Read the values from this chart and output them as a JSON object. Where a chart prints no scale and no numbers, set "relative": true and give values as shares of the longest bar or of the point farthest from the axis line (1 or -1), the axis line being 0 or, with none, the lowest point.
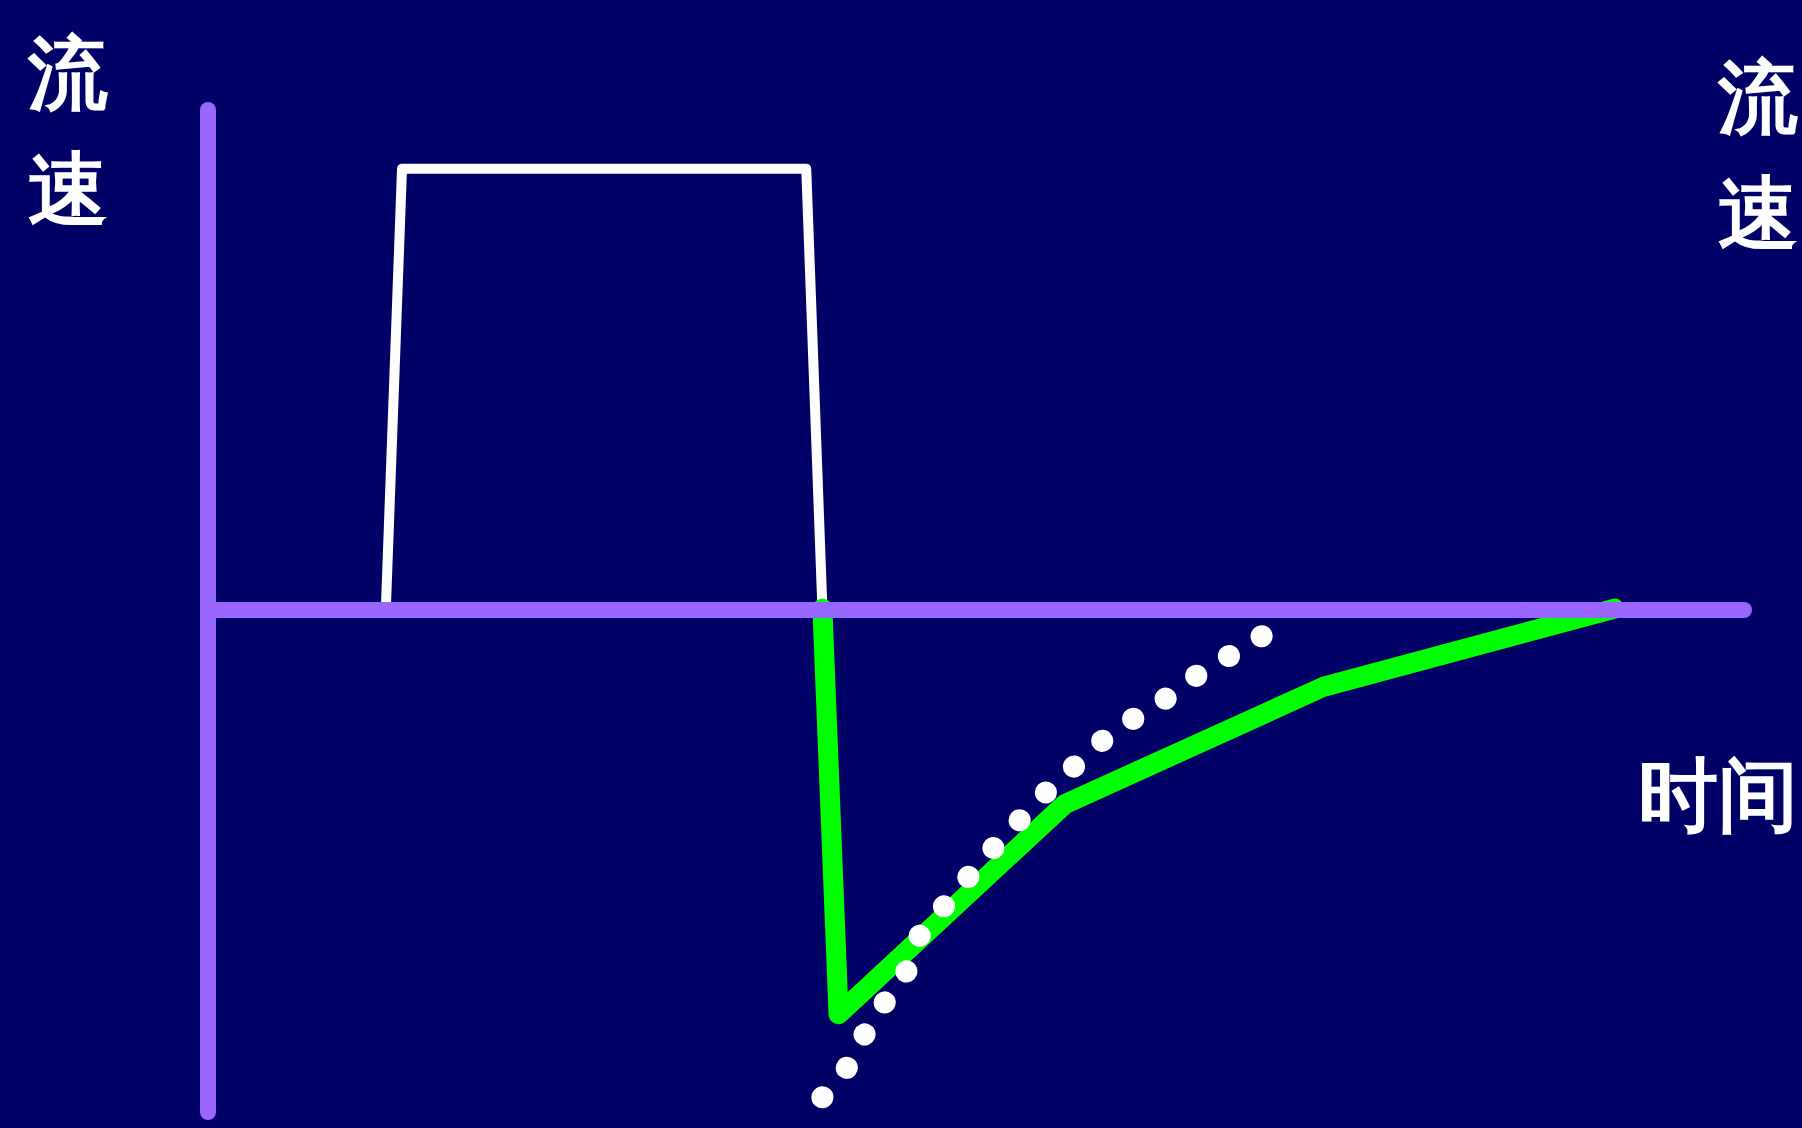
{
  "chart_data": {
    "type": "line",
    "ylabel": "流速",
    "y2label": "流速",
    "xlabel": "时间",
    "relative": true,
    "marker": "none",
    "ref_lines": [
      {
        "axis": "y",
        "value": 0,
        "color": "#9966ff"
      }
    ],
    "categories": [
      null,
      null,
      null,
      null,
      null,
      null,
      null,
      null,
      null,
      null,
      null,
      null,
      null,
      null,
      null,
      null,
      null,
      null,
      null,
      null,
      null,
      null,
      null,
      null,
      null,
      null,
      null,
      null,
      null,
      null,
      null,
      null,
      null,
      null,
      null,
      null,
      null,
      null,
      null,
      null,
      null,
      null,
      null,
      null,
      null,
      null,
      null,
      null,
      null,
      null,
      null,
      null,
      null,
      null,
      null,
      null,
      null,
      null,
      null,
      null,
      null,
      null,
      null,
      null,
      null,
      null,
      null,
      null,
      null,
      null,
      null,
      null,
      null,
      null,
      null,
      null,
      null,
      null,
      null,
      null,
      null,
      null,
      null,
      null,
      null,
      null,
      null,
      null,
      null,
      null,
      null,
      null,
      null,
      null,
      null,
      null
    ],
    "series": [
      {
        "color": "#ffffff",
        "values": [
          null,
          null,
          null,
          null,
          null,
          null,
          null,
          null,
          null,
          null,
          null,
          0,
          0.9,
          null,
          null,
          null,
          null,
          null,
          null,
          null,
          null,
          null,
          null,
          null,
          null,
          null,
          null,
          null,
          null,
          null,
          null,
          null,
          null,
          null,
          null,
          null,
          null,
          0.9,
          0,
          null,
          null,
          null,
          null,
          null,
          null,
          null,
          null,
          null,
          null,
          null,
          null,
          null,
          null,
          null,
          null,
          null,
          null,
          null,
          null,
          null,
          null,
          null,
          null,
          null,
          null,
          null,
          null,
          null,
          null,
          null,
          null,
          null,
          null,
          null,
          null,
          null,
          null,
          null,
          null,
          null,
          null,
          null,
          null,
          null,
          null,
          null,
          null,
          null,
          null,
          null,
          null,
          null,
          null,
          null,
          null,
          null
        ]
      },
      {
        "color": "#00ff00",
        "values": [
          null,
          null,
          null,
          null,
          null,
          null,
          null,
          null,
          null,
          null,
          null,
          null,
          null,
          null,
          null,
          null,
          null,
          null,
          null,
          null,
          null,
          null,
          null,
          null,
          null,
          null,
          null,
          null,
          null,
          null,
          null,
          null,
          null,
          null,
          null,
          null,
          null,
          null,
          0,
          -0.83,
          null,
          null,
          null,
          null,
          null,
          null,
          null,
          null,
          null,
          null,
          null,
          null,
          null,
          -0.4,
          null,
          null,
          null,
          null,
          null,
          null,
          null,
          null,
          null,
          null,
          null,
          null,
          null,
          null,
          null,
          -0.16,
          null,
          null,
          null,
          null,
          null,
          null,
          null,
          null,
          null,
          null,
          null,
          null,
          null,
          null,
          null,
          null,
          null,
          0,
          null,
          null,
          null,
          null,
          null,
          null,
          null,
          null
        ]
      },
      {
        "color": "#ffffff",
        "line_style": "dotted",
        "values": [
          null,
          null,
          null,
          null,
          null,
          null,
          null,
          null,
          null,
          null,
          null,
          null,
          null,
          null,
          null,
          null,
          null,
          null,
          null,
          null,
          null,
          null,
          null,
          null,
          null,
          null,
          null,
          null,
          null,
          null,
          null,
          null,
          null,
          null,
          null,
          null,
          null,
          null,
          -1,
          null,
          -0.92,
          -0.84,
          null,
          -0.76,
          -0.67,
          null,
          null,
          null,
          -0.51,
          null,
          -0.44,
          null,
          -0.37,
          null,
          -0.31,
          null,
          -0.25,
          null,
          null,
          -0.19,
          null,
          -0.14,
          null,
          null,
          -0.08,
          null,
          -0.04,
          null,
          null,
          null,
          null,
          null,
          null,
          null,
          null,
          null,
          null,
          null,
          null,
          null,
          null,
          null,
          null,
          null,
          null,
          null,
          null,
          null,
          null,
          null,
          null,
          null,
          null,
          null,
          null,
          null
        ]
      }
    ]
  }
}
